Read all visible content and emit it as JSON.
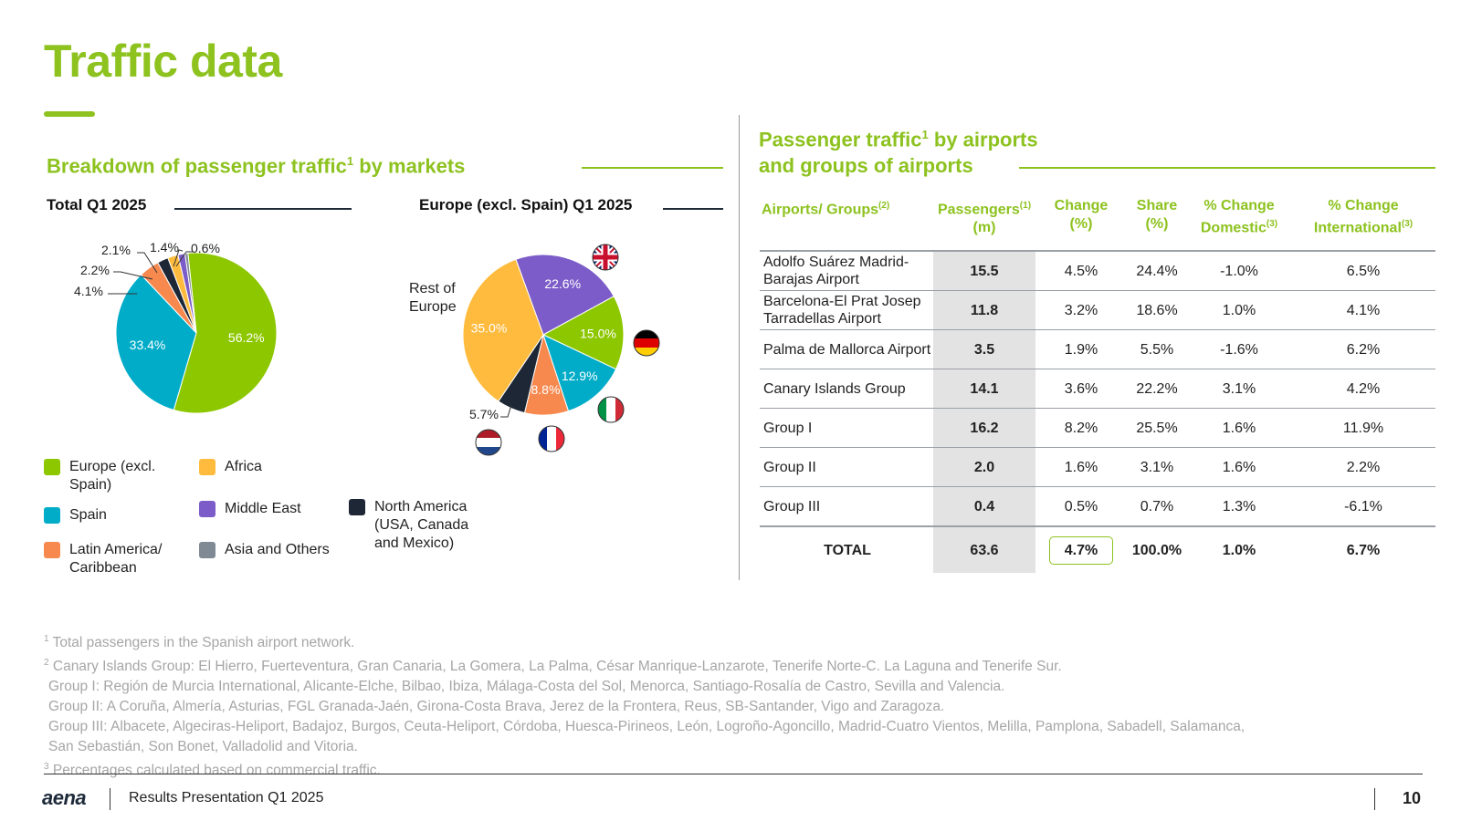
{
  "header": {
    "title": "Traffic data"
  },
  "left": {
    "section_title": "Breakdown of passenger traffic",
    "section_title_sup": "1",
    "section_title_tail": " by markets",
    "total_title": "Total Q1 2025",
    "europe_title": "Europe (excl. Spain) Q1 2025",
    "rest_of_europe": "Rest of Europe"
  },
  "chart_data": [
    {
      "type": "pie",
      "title": "Total Q1 2025",
      "categories": [
        "Europe (excl. Spain)",
        "Spain",
        "Latin America/ Caribbean",
        "North America (USA, Canada and Mexico)",
        "Africa",
        "Middle East",
        "Asia and Others"
      ],
      "values": [
        56.2,
        33.4,
        4.1,
        2.2,
        2.1,
        1.4,
        0.6
      ],
      "labels": [
        "56.2%",
        "33.4%",
        "4.1%",
        "2.2%",
        "2.1%",
        "1.4%",
        "0.6%"
      ],
      "colors": [
        "#8dc700",
        "#00acc8",
        "#f7894f",
        "#1e2736",
        "#ffbb3d",
        "#7c5cc8",
        "#7f8a94"
      ]
    },
    {
      "type": "pie",
      "title": "Europe (excl. Spain) Q1 2025",
      "categories": [
        "United Kingdom",
        "Germany",
        "Italy",
        "France",
        "Netherlands",
        "Rest of Europe"
      ],
      "values": [
        22.6,
        15.0,
        12.9,
        8.8,
        5.7,
        35.0
      ],
      "labels": [
        "22.6%",
        "15.0%",
        "12.9%",
        "8.8%",
        "5.7%",
        "35.0%"
      ],
      "colors": [
        "#7c5cc8",
        "#8dc700",
        "#00acc8",
        "#f7894f",
        "#1e2736",
        "#ffbb3d"
      ]
    }
  ],
  "legend": [
    {
      "label": "Europe (excl. Spain)",
      "color": "#8dc700"
    },
    {
      "label": "Spain",
      "color": "#00acc8"
    },
    {
      "label": "Latin America/ Caribbean",
      "color": "#f7894f"
    },
    {
      "label": "Africa",
      "color": "#ffbb3d"
    },
    {
      "label": "Middle East",
      "color": "#7c5cc8"
    },
    {
      "label": "Asia and Others",
      "color": "#7f8a94"
    },
    {
      "label": "North America (USA, Canada and Mexico)",
      "color": "#1e2736"
    }
  ],
  "right": {
    "section_title_1": "Passenger traffic",
    "section_title_sup": "1",
    "section_title_1_tail": " by airports",
    "section_title_2": "and groups of airports",
    "headers": {
      "airports": "Airports/ Groups",
      "airports_sup": "(2)",
      "passengers": "Passengers",
      "passengers_sup": "(1)",
      "passengers_unit": "(m)",
      "change": "Change",
      "change_unit": "(%)",
      "share": "Share",
      "share_unit": "(%)",
      "dom": "% Change Domestic",
      "dom_sup": "(3)",
      "intl": "% Change International",
      "intl_sup": "(3)"
    },
    "rows": [
      {
        "name": "Adolfo Suárez Madrid-Barajas Airport",
        "pax": "15.5",
        "change": "4.5%",
        "share": "24.4%",
        "dom": "-1.0%",
        "intl": "6.5%"
      },
      {
        "name": "Barcelona-El Prat Josep Tarradellas Airport",
        "pax": "11.8",
        "change": "3.2%",
        "share": "18.6%",
        "dom": "1.0%",
        "intl": "4.1%"
      },
      {
        "name": "Palma de Mallorca Airport",
        "pax": "3.5",
        "change": "1.9%",
        "share": "5.5%",
        "dom": "-1.6%",
        "intl": "6.2%"
      },
      {
        "name": "Canary Islands Group",
        "pax": "14.1",
        "change": "3.6%",
        "share": "22.2%",
        "dom": "3.1%",
        "intl": "4.2%"
      },
      {
        "name": "Group I",
        "pax": "16.2",
        "change": "8.2%",
        "share": "25.5%",
        "dom": "1.6%",
        "intl": "11.9%"
      },
      {
        "name": "Group II",
        "pax": "2.0",
        "change": "1.6%",
        "share": "3.1%",
        "dom": "1.6%",
        "intl": "2.2%"
      },
      {
        "name": "Group III",
        "pax": "0.4",
        "change": "0.5%",
        "share": "0.7%",
        "dom": "1.3%",
        "intl": "-6.1%"
      }
    ],
    "total": {
      "name": "TOTAL",
      "pax": "63.6",
      "change": "4.7%",
      "share": "100.0%",
      "dom": "1.0%",
      "intl": "6.7%"
    }
  },
  "footnotes": {
    "n1": "Total passengers in the Spanish airport network.",
    "n2": "Canary Islands Group: El Hierro, Fuerteventura, Gran Canaria, La Gomera, La Palma, César Manrique-Lanzarote, Tenerife Norte-C. La Laguna and Tenerife Sur.",
    "g1": "Group I: Región de Murcia International, Alicante-Elche, Bilbao, Ibiza, Málaga-Costa del Sol, Menorca, Santiago-Rosalía de Castro, Sevilla and Valencia.",
    "g2": "Group II: A Coruña, Almería, Asturias, FGL Granada-Jaén, Girona-Costa Brava, Jerez de la Frontera, Reus, SB-Santander, Vigo and Zaragoza.",
    "g3a": "Group III: Albacete, Algeciras-Heliport, Badajoz, Burgos, Ceuta-Heliport, Córdoba, Huesca-Pirineos, León, Logroño-Agoncillo, Madrid-Cuatro Vientos, Melilla, Pamplona, Sabadell, Salamanca,",
    "g3b": "San Sebastián, Son Bonet, Valladolid and Vitoria.",
    "n3": "Percentages calculated based on commercial traffic."
  },
  "footer": {
    "logo": "aena",
    "presentation": "Results Presentation Q1 2025",
    "page": "10"
  }
}
